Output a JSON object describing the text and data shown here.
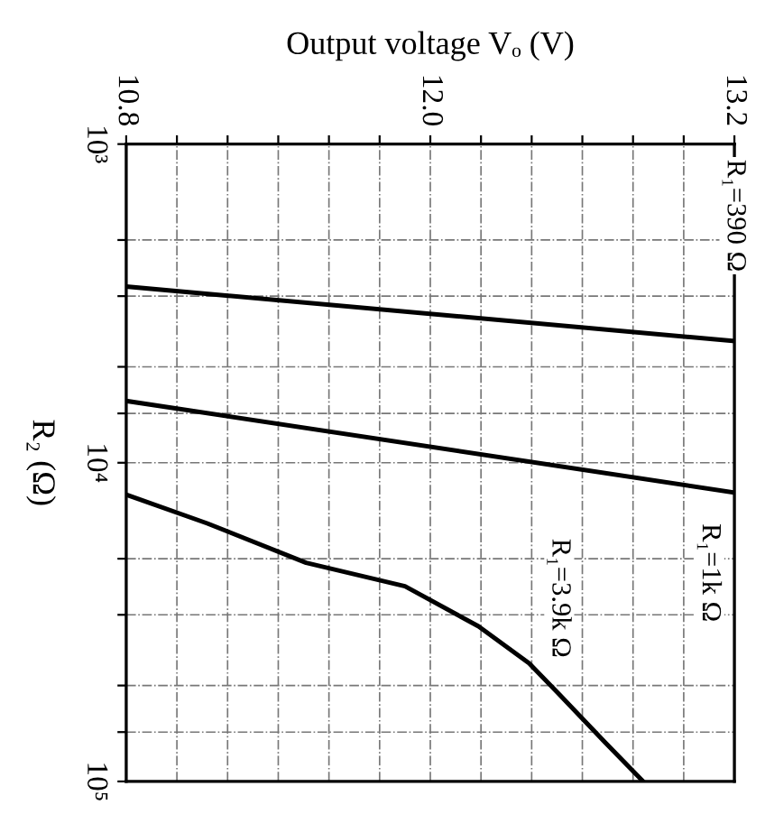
{
  "chart_data": {
    "type": "line",
    "xlabel": "Output voltage Vₒ (V)",
    "ylabel": "R₂ (Ω)",
    "series": [
      {
        "name": "R₁=390 Ω",
        "color": "#000000",
        "x": [
          10.8,
          13.2
        ],
        "values": [
          2800,
          4150
        ]
      },
      {
        "name": "R₁=1k Ω",
        "color": "#000000",
        "x": [
          10.8,
          13.2
        ],
        "values": [
          6400,
          12400
        ]
      },
      {
        "name": "R₁=3.9k Ω",
        "color": "#000000",
        "x": [
          10.8,
          11.12,
          11.51,
          11.9,
          12.19,
          12.39,
          12.51,
          12.69,
          12.84
        ],
        "values": [
          12600,
          15500,
          20600,
          24400,
          32600,
          42600,
          53400,
          75500,
          100000
        ]
      }
    ],
    "xlim": [
      10.8,
      13.2
    ],
    "xticks": [
      10.8,
      {
        "value": 11.0,
        "label": null
      },
      {
        "value": 11.2,
        "label": null
      },
      {
        "value": 11.4,
        "label": null
      },
      {
        "value": 11.6,
        "label": null
      },
      {
        "value": 11.8,
        "label": null
      },
      {
        "value": 12.0,
        "label": "12.0"
      },
      {
        "value": 12.2,
        "label": null
      },
      {
        "value": 12.4,
        "label": null
      },
      {
        "value": 12.6,
        "label": null
      },
      {
        "value": 12.8,
        "label": null
      },
      {
        "value": 13.0,
        "label": null
      },
      13.2
    ],
    "ylim": [
      100000,
      1000
    ],
    "yticks": [
      {
        "value": 1000,
        "label": "10³"
      },
      {
        "value": 2000,
        "label": null
      },
      {
        "value": 3000,
        "label": null
      },
      {
        "value": 5000,
        "label": null
      },
      {
        "value": 7000,
        "label": null
      },
      {
        "value": 10000,
        "label": "10⁴"
      },
      {
        "value": 20000,
        "label": null
      },
      {
        "value": 30000,
        "label": null
      },
      {
        "value": 50000,
        "label": null
      },
      {
        "value": 70000,
        "label": null
      },
      {
        "value": 100000,
        "label": "10⁵"
      }
    ],
    "log": "y",
    "grid": true,
    "line_style": "solid",
    "marker": "none",
    "legend": false
  }
}
